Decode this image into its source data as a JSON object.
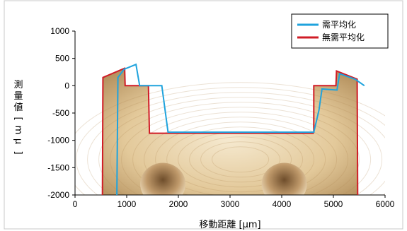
{
  "chart_data": {
    "type": "line",
    "xlabel": "移動距離 [μm]",
    "ylabel_chars": [
      "測",
      "量",
      "値",
      "[",
      "m",
      "μ",
      "]"
    ],
    "xlim": [
      0,
      6000
    ],
    "ylim": [
      -2000,
      1000
    ],
    "xticks": [
      0,
      1000,
      2000,
      3000,
      4000,
      5000,
      6000
    ],
    "yticks": [
      -2000,
      -1500,
      -1000,
      -500,
      0,
      500,
      1000
    ],
    "series": [
      {
        "name": "需平均化",
        "color": "#1fa3dd",
        "x": [
          810,
          830,
          950,
          1180,
          1250,
          1440,
          1680,
          1800,
          4620,
          4720,
          4780,
          5070,
          5120,
          5420,
          5600
        ],
        "y": [
          -2000,
          150,
          300,
          390,
          0,
          0,
          0,
          -850,
          -850,
          -450,
          -60,
          -80,
          220,
          120,
          0
        ]
      },
      {
        "name": "無需平均化",
        "color": "#d01c26",
        "x": [
          530,
          540,
          960,
          970,
          1420,
          1440,
          1440,
          4610,
          4620,
          4620,
          5050,
          5060,
          5460,
          5470
        ],
        "y": [
          -2000,
          150,
          320,
          0,
          0,
          -850,
          -870,
          -870,
          -850,
          0,
          0,
          270,
          120,
          -2000
        ]
      }
    ]
  },
  "legend": {
    "entries": [
      "需平均化",
      "無需平均化"
    ]
  }
}
